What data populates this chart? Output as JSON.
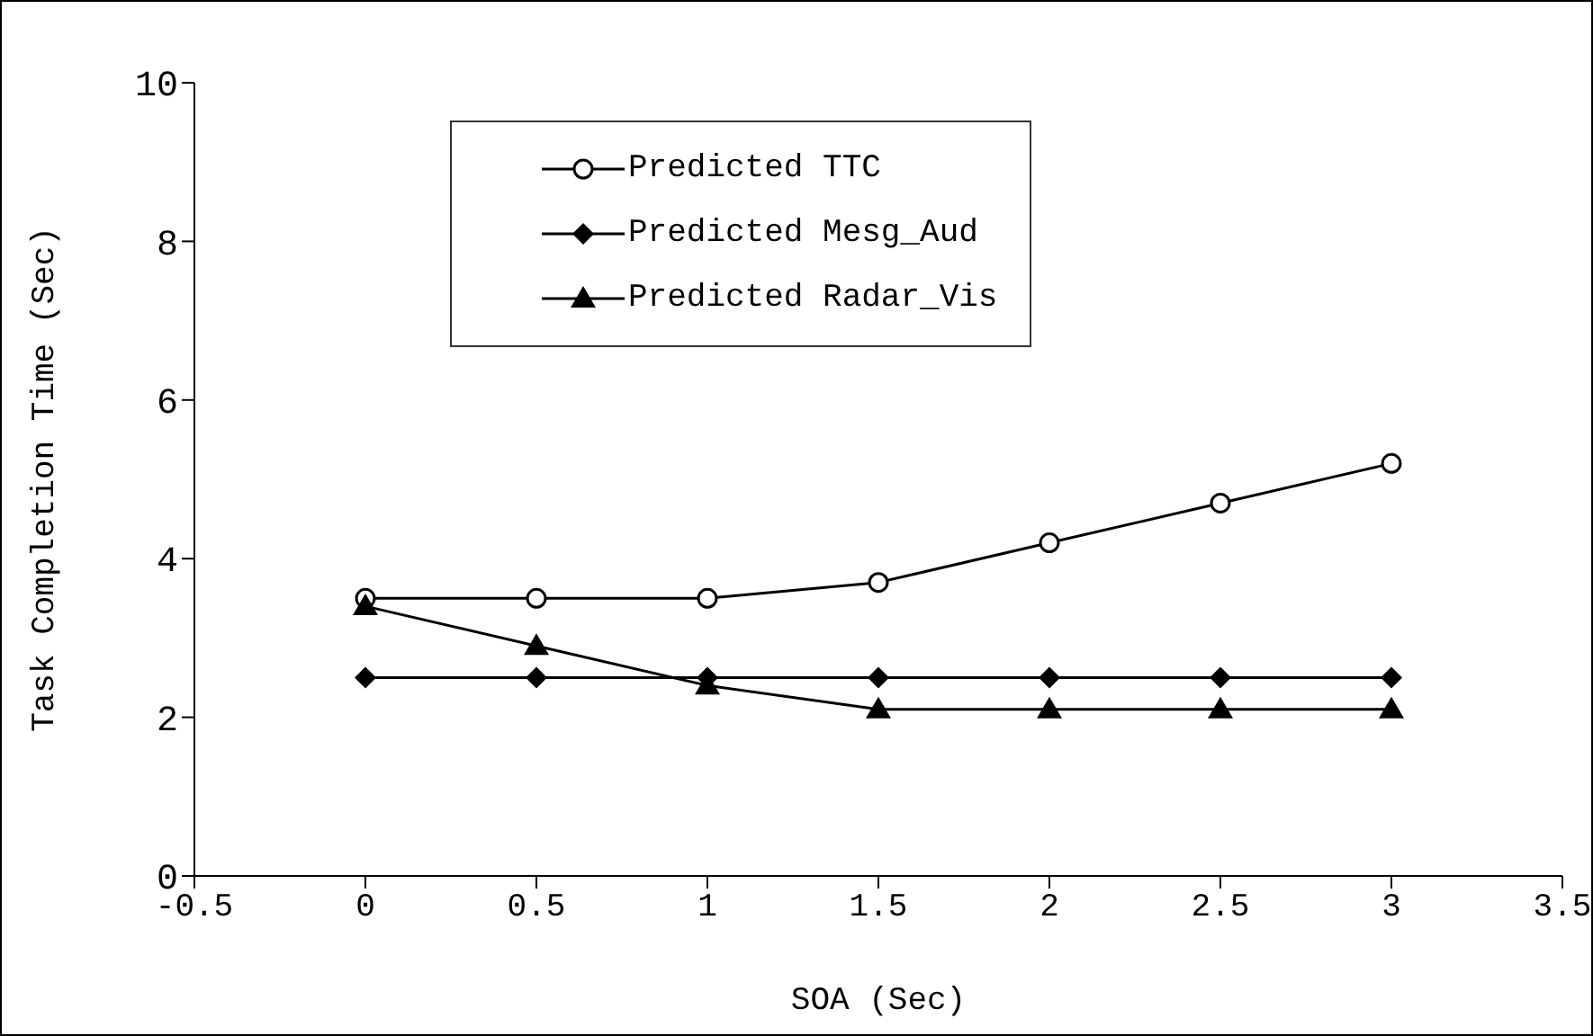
{
  "chart_data": {
    "type": "line",
    "xlabel": "SOA (Sec)",
    "ylabel": "Task Completion Time (Sec)",
    "x": [
      0,
      0.5,
      1,
      1.5,
      2,
      2.5,
      3
    ],
    "series": [
      {
        "name": "Predicted TTC",
        "color": "#000000",
        "marker": "circle",
        "values": [
          3.5,
          3.5,
          3.5,
          3.7,
          4.2,
          4.7,
          5.2
        ]
      },
      {
        "name": "Predicted Mesg_Aud",
        "color": "#000000",
        "marker": "diamond",
        "values": [
          2.5,
          2.5,
          2.5,
          2.5,
          2.5,
          2.5,
          2.5
        ]
      },
      {
        "name": "Predicted Radar_Vis",
        "color": "#000000",
        "marker": "triangle",
        "values": [
          3.4,
          2.9,
          2.4,
          2.1,
          2.1,
          2.1,
          2.1
        ]
      }
    ],
    "xlim": [
      -0.5,
      3.5
    ],
    "xticks": [
      -0.5,
      0,
      0.5,
      1,
      1.5,
      2,
      2.5,
      3,
      3.5
    ],
    "ylim": [
      0,
      10
    ],
    "yticks": [
      0,
      2,
      4,
      6,
      8,
      10
    ],
    "grid": false,
    "legend": "top left",
    "line_style": "solid"
  }
}
